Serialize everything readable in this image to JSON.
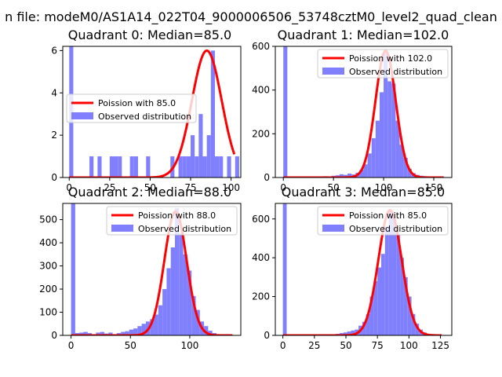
{
  "suptitle": "n file: modeM0/AS1A14_022T04_9000006506_53748cztM0_level2_quad_clean",
  "colors": {
    "observed": "#8080ff",
    "poisson": "#ff0000"
  },
  "chart_data": [
    {
      "type": "bar",
      "title": "Quadrant 0: Median=85.0",
      "xticks": [
        0,
        25,
        50,
        75,
        100
      ],
      "xlim": [
        -4,
        106
      ],
      "yticks": [
        0,
        2,
        4,
        6
      ],
      "ylim": [
        0,
        6.2
      ],
      "bin_width": 2.5,
      "legend": {
        "position": "center-left",
        "entries": [
          "Poission with 85.0",
          "Observed distribution"
        ]
      },
      "observed_bins": [
        {
          "x": 0,
          "value": 6.2
        },
        {
          "x": 12.5,
          "value": 1
        },
        {
          "x": 17.5,
          "value": 1
        },
        {
          "x": 25,
          "value": 1
        },
        {
          "x": 27.5,
          "value": 1
        },
        {
          "x": 30,
          "value": 1
        },
        {
          "x": 37.5,
          "value": 1
        },
        {
          "x": 40,
          "value": 1
        },
        {
          "x": 47.5,
          "value": 1
        },
        {
          "x": 62.5,
          "value": 1
        },
        {
          "x": 67.5,
          "value": 1
        },
        {
          "x": 70,
          "value": 1
        },
        {
          "x": 72.5,
          "value": 1
        },
        {
          "x": 75,
          "value": 2
        },
        {
          "x": 77.5,
          "value": 1
        },
        {
          "x": 80,
          "value": 3
        },
        {
          "x": 82.5,
          "value": 1
        },
        {
          "x": 85,
          "value": 2
        },
        {
          "x": 87.5,
          "value": 6
        },
        {
          "x": 90,
          "value": 1
        },
        {
          "x": 92.5,
          "value": 1
        },
        {
          "x": 97.5,
          "value": 1
        },
        {
          "x": 102.5,
          "value": 1
        }
      ],
      "poisson_curve": {
        "mean": 85,
        "peak": 6.0,
        "x_range": [
          0,
          102
        ]
      }
    },
    {
      "type": "bar",
      "title": "Quadrant 1: Median=102.0",
      "xticks": [
        0,
        50,
        100,
        150
      ],
      "xlim": [
        -8,
        168
      ],
      "yticks": [
        0,
        200,
        400,
        600
      ],
      "ylim": [
        0,
        600
      ],
      "bin_width": 4,
      "legend": {
        "position": "top-right",
        "entries": [
          "Poission with 102.0",
          "Observed distribution"
        ]
      },
      "observed_bins": [
        {
          "x": 0,
          "value": 600
        },
        {
          "x": 8,
          "value": 4
        },
        {
          "x": 16,
          "value": 3
        },
        {
          "x": 24,
          "value": 2
        },
        {
          "x": 32,
          "value": 4
        },
        {
          "x": 40,
          "value": 6
        },
        {
          "x": 48,
          "value": 8
        },
        {
          "x": 52,
          "value": 10
        },
        {
          "x": 56,
          "value": 15
        },
        {
          "x": 60,
          "value": 12
        },
        {
          "x": 64,
          "value": 18
        },
        {
          "x": 68,
          "value": 14
        },
        {
          "x": 72,
          "value": 22
        },
        {
          "x": 76,
          "value": 35
        },
        {
          "x": 80,
          "value": 60
        },
        {
          "x": 84,
          "value": 110
        },
        {
          "x": 88,
          "value": 180
        },
        {
          "x": 92,
          "value": 260
        },
        {
          "x": 96,
          "value": 390
        },
        {
          "x": 100,
          "value": 570
        },
        {
          "x": 104,
          "value": 440
        },
        {
          "x": 108,
          "value": 430
        },
        {
          "x": 112,
          "value": 260
        },
        {
          "x": 116,
          "value": 150
        },
        {
          "x": 120,
          "value": 90
        },
        {
          "x": 124,
          "value": 40
        },
        {
          "x": 128,
          "value": 20
        },
        {
          "x": 132,
          "value": 12
        },
        {
          "x": 136,
          "value": 8
        },
        {
          "x": 140,
          "value": 6
        },
        {
          "x": 148,
          "value": 3
        }
      ],
      "poisson_curve": {
        "mean": 102,
        "peak": 580,
        "x_range": [
          0,
          160
        ]
      }
    },
    {
      "type": "bar",
      "title": "Quadrant 2: Median=88.0",
      "xticks": [
        0,
        50,
        100
      ],
      "xlim": [
        -7,
        143
      ],
      "yticks": [
        0,
        100,
        200,
        300,
        400,
        500
      ],
      "ylim": [
        0,
        570
      ],
      "bin_width": 3.5,
      "legend": {
        "position": "top-right",
        "entries": [
          "Poission with 88.0",
          "Observed distribution"
        ]
      },
      "observed_bins": [
        {
          "x": 0,
          "value": 570
        },
        {
          "x": 3.5,
          "value": 10
        },
        {
          "x": 7,
          "value": 12
        },
        {
          "x": 10.5,
          "value": 15
        },
        {
          "x": 14,
          "value": 10
        },
        {
          "x": 21,
          "value": 12
        },
        {
          "x": 24.5,
          "value": 15
        },
        {
          "x": 28,
          "value": 8
        },
        {
          "x": 31.5,
          "value": 12
        },
        {
          "x": 38.5,
          "value": 10
        },
        {
          "x": 42,
          "value": 15
        },
        {
          "x": 45.5,
          "value": 18
        },
        {
          "x": 49,
          "value": 25
        },
        {
          "x": 52.5,
          "value": 30
        },
        {
          "x": 56,
          "value": 40
        },
        {
          "x": 59.5,
          "value": 50
        },
        {
          "x": 63,
          "value": 60
        },
        {
          "x": 66.5,
          "value": 70
        },
        {
          "x": 70,
          "value": 90
        },
        {
          "x": 73.5,
          "value": 130
        },
        {
          "x": 77,
          "value": 200
        },
        {
          "x": 80.5,
          "value": 290
        },
        {
          "x": 84,
          "value": 380
        },
        {
          "x": 87.5,
          "value": 550
        },
        {
          "x": 91,
          "value": 440
        },
        {
          "x": 94.5,
          "value": 350
        },
        {
          "x": 98,
          "value": 280
        },
        {
          "x": 101.5,
          "value": 170
        },
        {
          "x": 105,
          "value": 110
        },
        {
          "x": 108.5,
          "value": 60
        },
        {
          "x": 112,
          "value": 40
        },
        {
          "x": 115.5,
          "value": 20
        },
        {
          "x": 119,
          "value": 10
        },
        {
          "x": 122.5,
          "value": 5
        }
      ],
      "poisson_curve": {
        "mean": 88,
        "peak": 535,
        "x_range": [
          0,
          136
        ]
      }
    },
    {
      "type": "bar",
      "title": "Quadrant 3: Median=85.0",
      "xticks": [
        0,
        25,
        50,
        75,
        100,
        125
      ],
      "xlim": [
        -6,
        134
      ],
      "yticks": [
        0,
        200,
        400,
        600
      ],
      "ylim": [
        0,
        680
      ],
      "bin_width": 3,
      "legend": {
        "position": "top-right",
        "entries": [
          "Poission with 85.0",
          "Observed distribution"
        ]
      },
      "observed_bins": [
        {
          "x": 0,
          "value": 680
        },
        {
          "x": 27,
          "value": 3
        },
        {
          "x": 33,
          "value": 5
        },
        {
          "x": 39,
          "value": 6
        },
        {
          "x": 42,
          "value": 8
        },
        {
          "x": 45,
          "value": 12
        },
        {
          "x": 48,
          "value": 15
        },
        {
          "x": 51,
          "value": 20
        },
        {
          "x": 54,
          "value": 25
        },
        {
          "x": 57,
          "value": 30
        },
        {
          "x": 60,
          "value": 50
        },
        {
          "x": 63,
          "value": 70
        },
        {
          "x": 66,
          "value": 110
        },
        {
          "x": 69,
          "value": 200
        },
        {
          "x": 72,
          "value": 280
        },
        {
          "x": 75,
          "value": 350
        },
        {
          "x": 78,
          "value": 420
        },
        {
          "x": 81,
          "value": 560
        },
        {
          "x": 84,
          "value": 640
        },
        {
          "x": 87,
          "value": 600
        },
        {
          "x": 90,
          "value": 520
        },
        {
          "x": 93,
          "value": 400
        },
        {
          "x": 96,
          "value": 300
        },
        {
          "x": 99,
          "value": 200
        },
        {
          "x": 102,
          "value": 110
        },
        {
          "x": 105,
          "value": 60
        },
        {
          "x": 108,
          "value": 30
        },
        {
          "x": 111,
          "value": 15
        },
        {
          "x": 114,
          "value": 8
        },
        {
          "x": 117,
          "value": 4
        }
      ],
      "poisson_curve": {
        "mean": 85,
        "peak": 645,
        "x_range": [
          0,
          126
        ]
      }
    }
  ]
}
